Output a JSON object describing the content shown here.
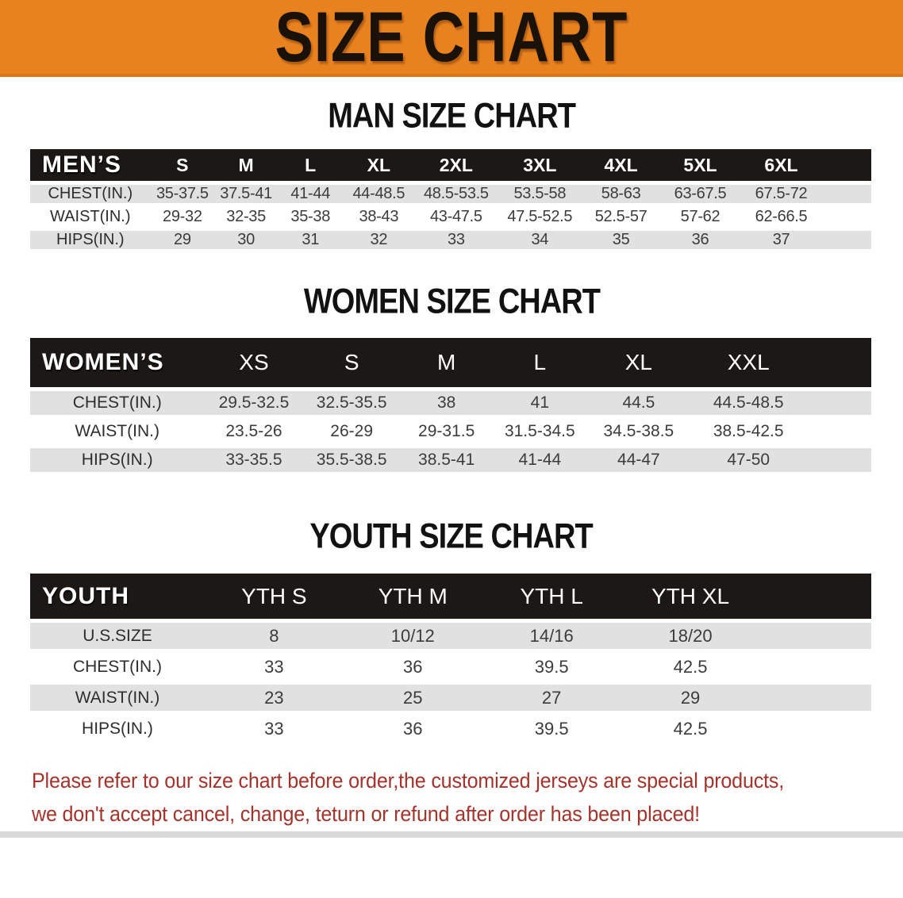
{
  "banner": {
    "title": "SIZE CHART",
    "bg_color": "#E8821F",
    "title_color": "#1A1108"
  },
  "colors": {
    "table_header_bg": "#1B1815",
    "table_header_text": "#ffffff",
    "stripe_row_bg": "#E1E1E1",
    "cell_text": "#3C3C3C",
    "disclaimer_text": "#A5332B"
  },
  "sections": [
    {
      "heading": "MAN SIZE CHART",
      "table": {
        "label": "MEN’S",
        "columns": [
          "S",
          "M",
          "L",
          "XL",
          "2XL",
          "3XL",
          "4XL",
          "5XL",
          "6XL"
        ],
        "rows": [
          {
            "label": "CHEST(IN.)",
            "values": [
              "35-37.5",
              "37.5-41",
              "41-44",
              "44-48.5",
              "48.5-53.5",
              "53.5-58",
              "58-63",
              "63-67.5",
              "67.5-72"
            ]
          },
          {
            "label": "WAIST(IN.)",
            "values": [
              "29-32",
              "32-35",
              "35-38",
              "38-43",
              "43-47.5",
              "47.5-52.5",
              "52.5-57",
              "57-62",
              "62-66.5"
            ]
          },
          {
            "label": "HIPS(IN.)",
            "values": [
              "29",
              "30",
              "31",
              "32",
              "33",
              "34",
              "35",
              "36",
              "37"
            ]
          }
        ]
      }
    },
    {
      "heading": "WOMEN SIZE CHART",
      "table": {
        "label": "WOMEN’S",
        "columns": [
          "XS",
          "S",
          "M",
          "L",
          "XL",
          "XXL"
        ],
        "rows": [
          {
            "label": "CHEST(IN.)",
            "values": [
              "29.5-32.5",
              "32.5-35.5",
              "38",
              "41",
              "44.5",
              "44.5-48.5"
            ]
          },
          {
            "label": "WAIST(IN.)",
            "values": [
              "23.5-26",
              "26-29",
              "29-31.5",
              "31.5-34.5",
              "34.5-38.5",
              "38.5-42.5"
            ]
          },
          {
            "label": "HIPS(IN.)",
            "values": [
              "33-35.5",
              "35.5-38.5",
              "38.5-41",
              "41-44",
              "44-47",
              "47-50"
            ]
          }
        ]
      }
    },
    {
      "heading": "YOUTH SIZE CHART",
      "table": {
        "label": "YOUTH",
        "columns": [
          "YTH S",
          "YTH M",
          "YTH L",
          "YTH XL"
        ],
        "rows": [
          {
            "label": "U.S.SIZE",
            "values": [
              "8",
              "10/12",
              "14/16",
              "18/20"
            ]
          },
          {
            "label": "CHEST(IN.)",
            "values": [
              "33",
              "36",
              "39.5",
              "42.5"
            ]
          },
          {
            "label": "WAIST(IN.)",
            "values": [
              "23",
              "25",
              "27",
              "29"
            ]
          },
          {
            "label": "HIPS(IN.)",
            "values": [
              "33",
              "36",
              "39.5",
              "42.5"
            ]
          }
        ]
      }
    }
  ],
  "footer": {
    "line1": "Please refer to our size chart before order,the customized jerseys are special products,",
    "line2": "we don't accept cancel, change, teturn or refund after order has been placed!"
  }
}
